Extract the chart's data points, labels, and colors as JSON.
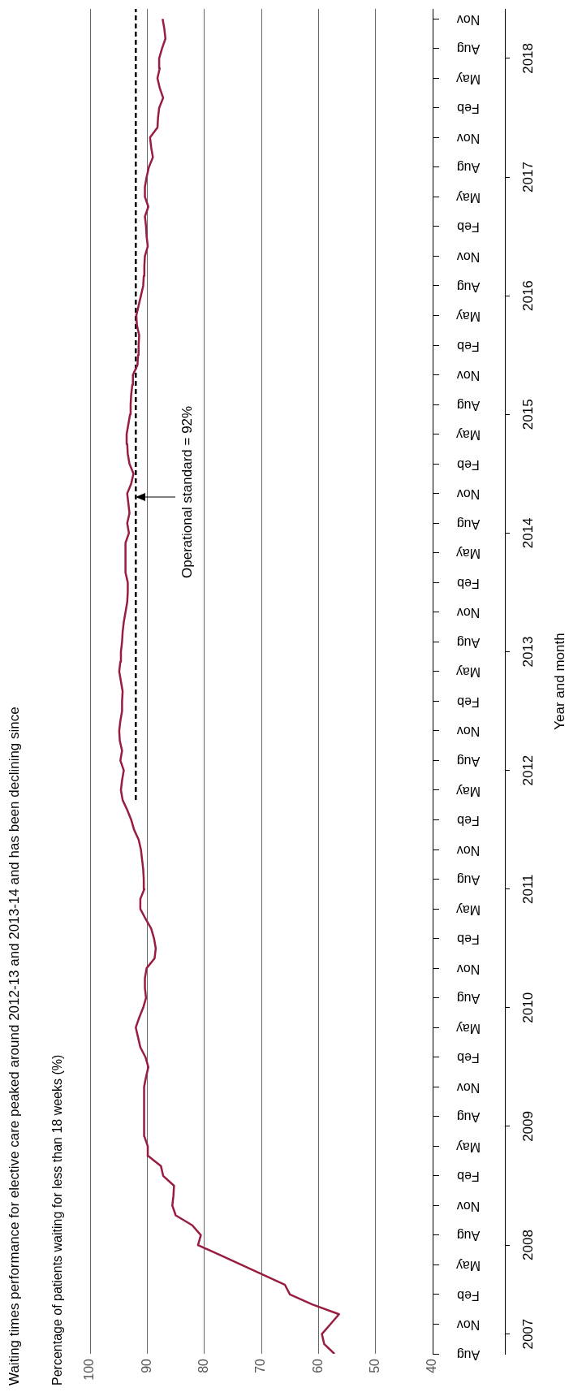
{
  "chart_data": {
    "type": "line",
    "orientation": "horizontal",
    "title": "Waiting times performance for elective care peaked around 2012-13 and 2013-14 and has been declining since",
    "ylabel": "Percentage of patients waiting for less than 18 weeks (%)",
    "y2label": "Year and month",
    "x": [
      "2007-08",
      "2007-09",
      "2007-10",
      "2007-11",
      "2007-12",
      "2008-01",
      "2008-02",
      "2008-03",
      "2008-04",
      "2008-05",
      "2008-06",
      "2008-07",
      "2008-08",
      "2008-09",
      "2008-10",
      "2008-11",
      "2008-12",
      "2009-01",
      "2009-02",
      "2009-03",
      "2009-04",
      "2009-05",
      "2009-06",
      "2009-07",
      "2009-08",
      "2009-09",
      "2009-10",
      "2009-11",
      "2009-12",
      "2010-01",
      "2010-02",
      "2010-03",
      "2010-04",
      "2010-05",
      "2010-06",
      "2010-07",
      "2010-08",
      "2010-09",
      "2010-10",
      "2010-11",
      "2010-12",
      "2011-01",
      "2011-02",
      "2011-03",
      "2011-04",
      "2011-05",
      "2011-06",
      "2011-07",
      "2011-08",
      "2011-09",
      "2011-10",
      "2011-11",
      "2011-12",
      "2012-01",
      "2012-02",
      "2012-03",
      "2012-04",
      "2012-05",
      "2012-06",
      "2012-07",
      "2012-08",
      "2012-09",
      "2012-10",
      "2012-11",
      "2012-12",
      "2013-01",
      "2013-02",
      "2013-03",
      "2013-04",
      "2013-05",
      "2013-06",
      "2013-07",
      "2013-08",
      "2013-09",
      "2013-10",
      "2013-11",
      "2013-12",
      "2014-01",
      "2014-02",
      "2014-03",
      "2014-04",
      "2014-05",
      "2014-06",
      "2014-07",
      "2014-08",
      "2014-09",
      "2014-10",
      "2014-11",
      "2014-12",
      "2015-01",
      "2015-02",
      "2015-03",
      "2015-04",
      "2015-05",
      "2015-06",
      "2015-07",
      "2015-08",
      "2015-09",
      "2015-10",
      "2015-11",
      "2015-12",
      "2016-01",
      "2016-02",
      "2016-03",
      "2016-04",
      "2016-05",
      "2016-06",
      "2016-07",
      "2016-08",
      "2016-09",
      "2016-10",
      "2016-11",
      "2016-12",
      "2017-01",
      "2017-02",
      "2017-03",
      "2017-04",
      "2017-05",
      "2017-06",
      "2017-07",
      "2017-08",
      "2017-09",
      "2017-10",
      "2017-11",
      "2017-12",
      "2018-01",
      "2018-02",
      "2018-03",
      "2018-04",
      "2018-05",
      "2018-06",
      "2018-07",
      "2018-08",
      "2018-09",
      "2018-10",
      "2018-11"
    ],
    "series": [
      {
        "color": "#981e40",
        "values": [
          57.2,
          59.0,
          59.4,
          57.9,
          56.4,
          61.1,
          65.0,
          65.9,
          69.7,
          73.5,
          77.3,
          81.1,
          80.6,
          82.1,
          85.0,
          85.6,
          85.4,
          85.3,
          87.2,
          87.6,
          89.8,
          89.9,
          90.5,
          90.6,
          90.5,
          90.5,
          90.5,
          90.6,
          90.2,
          89.8,
          90.3,
          91.2,
          91.6,
          92.0,
          91.4,
          90.7,
          90.2,
          90.4,
          90.4,
          90.1,
          88.7,
          88.5,
          88.8,
          89.3,
          90.3,
          91.2,
          91.2,
          90.5,
          90.6,
          90.7,
          90.9,
          91.1,
          91.5,
          92.3,
          92.8,
          93.5,
          94.3,
          94.6,
          94.4,
          94.1,
          94.7,
          94.4,
          94.8,
          94.9,
          94.7,
          94.4,
          94.4,
          94.3,
          94.6,
          94.9,
          94.7,
          94.6,
          94.4,
          94.3,
          94.1,
          93.8,
          93.5,
          93.4,
          93.4,
          93.8,
          93.8,
          93.8,
          93.8,
          93.2,
          93.5,
          93.1,
          93.3,
          93.5,
          92.8,
          92.4,
          93.1,
          93.4,
          93.5,
          93.6,
          93.3,
          93.0,
          92.9,
          92.8,
          92.6,
          92.5,
          91.7,
          91.6,
          91.5,
          91.4,
          91.8,
          91.9,
          91.5,
          91.1,
          90.7,
          90.6,
          90.5,
          90.4,
          89.9,
          90.1,
          90.2,
          90.4,
          89.8,
          90.4,
          90.4,
          90.1,
          89.7,
          89.0,
          89.3,
          89.5,
          88.2,
          88.1,
          87.9,
          87.2,
          87.8,
          88.2,
          87.8,
          87.9,
          87.4,
          86.8,
          87.0,
          87.3
        ]
      },
      {
        "type": "line",
        "x": [
          "2012-04",
          "2018-12"
        ],
        "values": [
          92,
          92
        ],
        "color": "#000000",
        "line_style": "dashed"
      }
    ],
    "annotations": [
      "Operational standard = 92%"
    ],
    "ylim": [
      "2007-08",
      "2018-12"
    ],
    "yticks": [
      {
        "value": "2007-08",
        "label": "Aug"
      },
      {
        "value": "2007-11",
        "label": "Nov"
      },
      {
        "value": "2008-02",
        "label": "Feb"
      },
      {
        "value": "2008-05",
        "label": "May"
      },
      {
        "value": "2008-08",
        "label": "Aug"
      },
      {
        "value": "2008-11",
        "label": "Nov"
      },
      {
        "value": "2009-02",
        "label": "Feb"
      },
      {
        "value": "2009-05",
        "label": "May"
      },
      {
        "value": "2009-08",
        "label": "Aug"
      },
      {
        "value": "2009-11",
        "label": "Nov"
      },
      {
        "value": "2010-02",
        "label": "Feb"
      },
      {
        "value": "2010-05",
        "label": "May"
      },
      {
        "value": "2010-08",
        "label": "Aug"
      },
      {
        "value": "2010-11",
        "label": "Nov"
      },
      {
        "value": "2011-02",
        "label": "Feb"
      },
      {
        "value": "2011-05",
        "label": "May"
      },
      {
        "value": "2011-08",
        "label": "Aug"
      },
      {
        "value": "2011-11",
        "label": "Nov"
      },
      {
        "value": "2012-02",
        "label": "Feb"
      },
      {
        "value": "2012-05",
        "label": "May"
      },
      {
        "value": "2012-08",
        "label": "Aug"
      },
      {
        "value": "2012-11",
        "label": "Nov"
      },
      {
        "value": "2013-02",
        "label": "Feb"
      },
      {
        "value": "2013-05",
        "label": "May"
      },
      {
        "value": "2013-08",
        "label": "Aug"
      },
      {
        "value": "2013-11",
        "label": "Nov"
      },
      {
        "value": "2014-02",
        "label": "Feb"
      },
      {
        "value": "2014-05",
        "label": "May"
      },
      {
        "value": "2014-08",
        "label": "Aug"
      },
      {
        "value": "2014-11",
        "label": "Nov"
      },
      {
        "value": "2015-02",
        "label": "Feb"
      },
      {
        "value": "2015-05",
        "label": "May"
      },
      {
        "value": "2015-08",
        "label": "Aug"
      },
      {
        "value": "2015-11",
        "label": "Nov"
      },
      {
        "value": "2016-02",
        "label": "Feb"
      },
      {
        "value": "2016-05",
        "label": "May"
      },
      {
        "value": "2016-08",
        "label": "Aug"
      },
      {
        "value": "2016-11",
        "label": "Nov"
      },
      {
        "value": "2017-02",
        "label": "Feb"
      },
      {
        "value": "2017-05",
        "label": "May"
      },
      {
        "value": "2017-08",
        "label": "Aug"
      },
      {
        "value": "2017-11",
        "label": "Nov"
      },
      {
        "value": "2018-02",
        "label": "Feb"
      },
      {
        "value": "2018-05",
        "label": "May"
      },
      {
        "value": "2018-08",
        "label": "Aug"
      },
      {
        "value": "2018-11",
        "label": "Nov"
      }
    ],
    "y2lim": [
      "2007-08",
      "2018-12"
    ],
    "y2ticks": [
      {
        "value": "2007-10",
        "label": "2007"
      },
      {
        "value": "2008-07",
        "label": "2008"
      },
      {
        "value": "2009-07",
        "label": "2009"
      },
      {
        "value": "2010-07",
        "label": "2010"
      },
      {
        "value": "2011-07",
        "label": "2011"
      },
      {
        "value": "2012-07",
        "label": "2012"
      },
      {
        "value": "2013-07",
        "label": "2013"
      },
      {
        "value": "2014-07",
        "label": "2014"
      },
      {
        "value": "2015-07",
        "label": "2015"
      },
      {
        "value": "2016-07",
        "label": "2016"
      },
      {
        "value": "2017-07",
        "label": "2017"
      },
      {
        "value": "2018-07",
        "label": "2018"
      }
    ],
    "xlim": [
      100,
      40
    ],
    "xticks": [
      100,
      90,
      80,
      70,
      60,
      50,
      40
    ],
    "grid": "x"
  }
}
